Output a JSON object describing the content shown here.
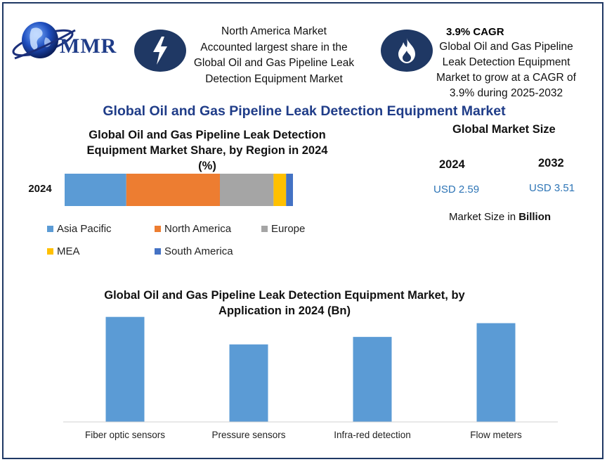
{
  "brand": {
    "logo_text": "MMR"
  },
  "highlights": [
    {
      "icon": "lightning-bolt-icon",
      "lines": [
        "North America Market",
        "Accounted largest share in the",
        "Global Oil and Gas Pipeline Leak",
        "Detection Equipment Market"
      ]
    },
    {
      "icon": "flame-icon",
      "title": "3.9% CAGR",
      "lines": [
        "Global Oil and Gas Pipeline",
        "Leak Detection Equipment",
        "Market to grow at a CAGR of",
        "3.9% during 2025-2032"
      ]
    }
  ],
  "main_title": "Global Oil and Gas Pipeline Leak Detection Equipment Market",
  "colors": {
    "frame": "#1f3864",
    "icon_bg": "#1f3864",
    "title": "#1f3c88",
    "bar": "#5b9bd5",
    "value": "#2e75b6"
  },
  "market_size": {
    "title": "Global Market Size",
    "years": [
      "2024",
      "2032"
    ],
    "values": [
      "USD 2.59",
      "USD 3.51"
    ],
    "unit_prefix": "Market Size in ",
    "unit_bold": "Billion"
  },
  "chart_data": [
    {
      "type": "bar",
      "orientation": "horizontal",
      "stacked": true,
      "title_lines": [
        "Global Oil and Gas Pipeline Leak Detection",
        "Equipment Market Share, by Region in 2024",
        "(%)"
      ],
      "categories": [
        "2024"
      ],
      "series": [
        {
          "name": "Asia Pacific",
          "color": "#5b9bd5",
          "values": [
            27
          ]
        },
        {
          "name": "North America",
          "color": "#ed7d31",
          "values": [
            41
          ]
        },
        {
          "name": "Europe",
          "color": "#a5a5a5",
          "values": [
            23.5
          ]
        },
        {
          "name": "MEA",
          "color": "#ffc000",
          "values": [
            5.5
          ]
        },
        {
          "name": "South America",
          "color": "#4472c4",
          "values": [
            3
          ]
        }
      ],
      "xlim": [
        0,
        100
      ],
      "legend_position": "bottom",
      "grid": false
    },
    {
      "type": "bar",
      "title_lines": [
        "Global Oil and Gas Pipeline Leak Detection Equipment Market, by",
        "Application in 2024 (Bn)"
      ],
      "categories": [
        "Fiber optic sensors",
        "Pressure sensors",
        "Infra-red detection",
        "Flow meters"
      ],
      "values": [
        0.84,
        0.62,
        0.68,
        0.79
      ],
      "ylim": [
        0,
        0.9
      ],
      "grid": false,
      "legend_position": "none"
    }
  ]
}
